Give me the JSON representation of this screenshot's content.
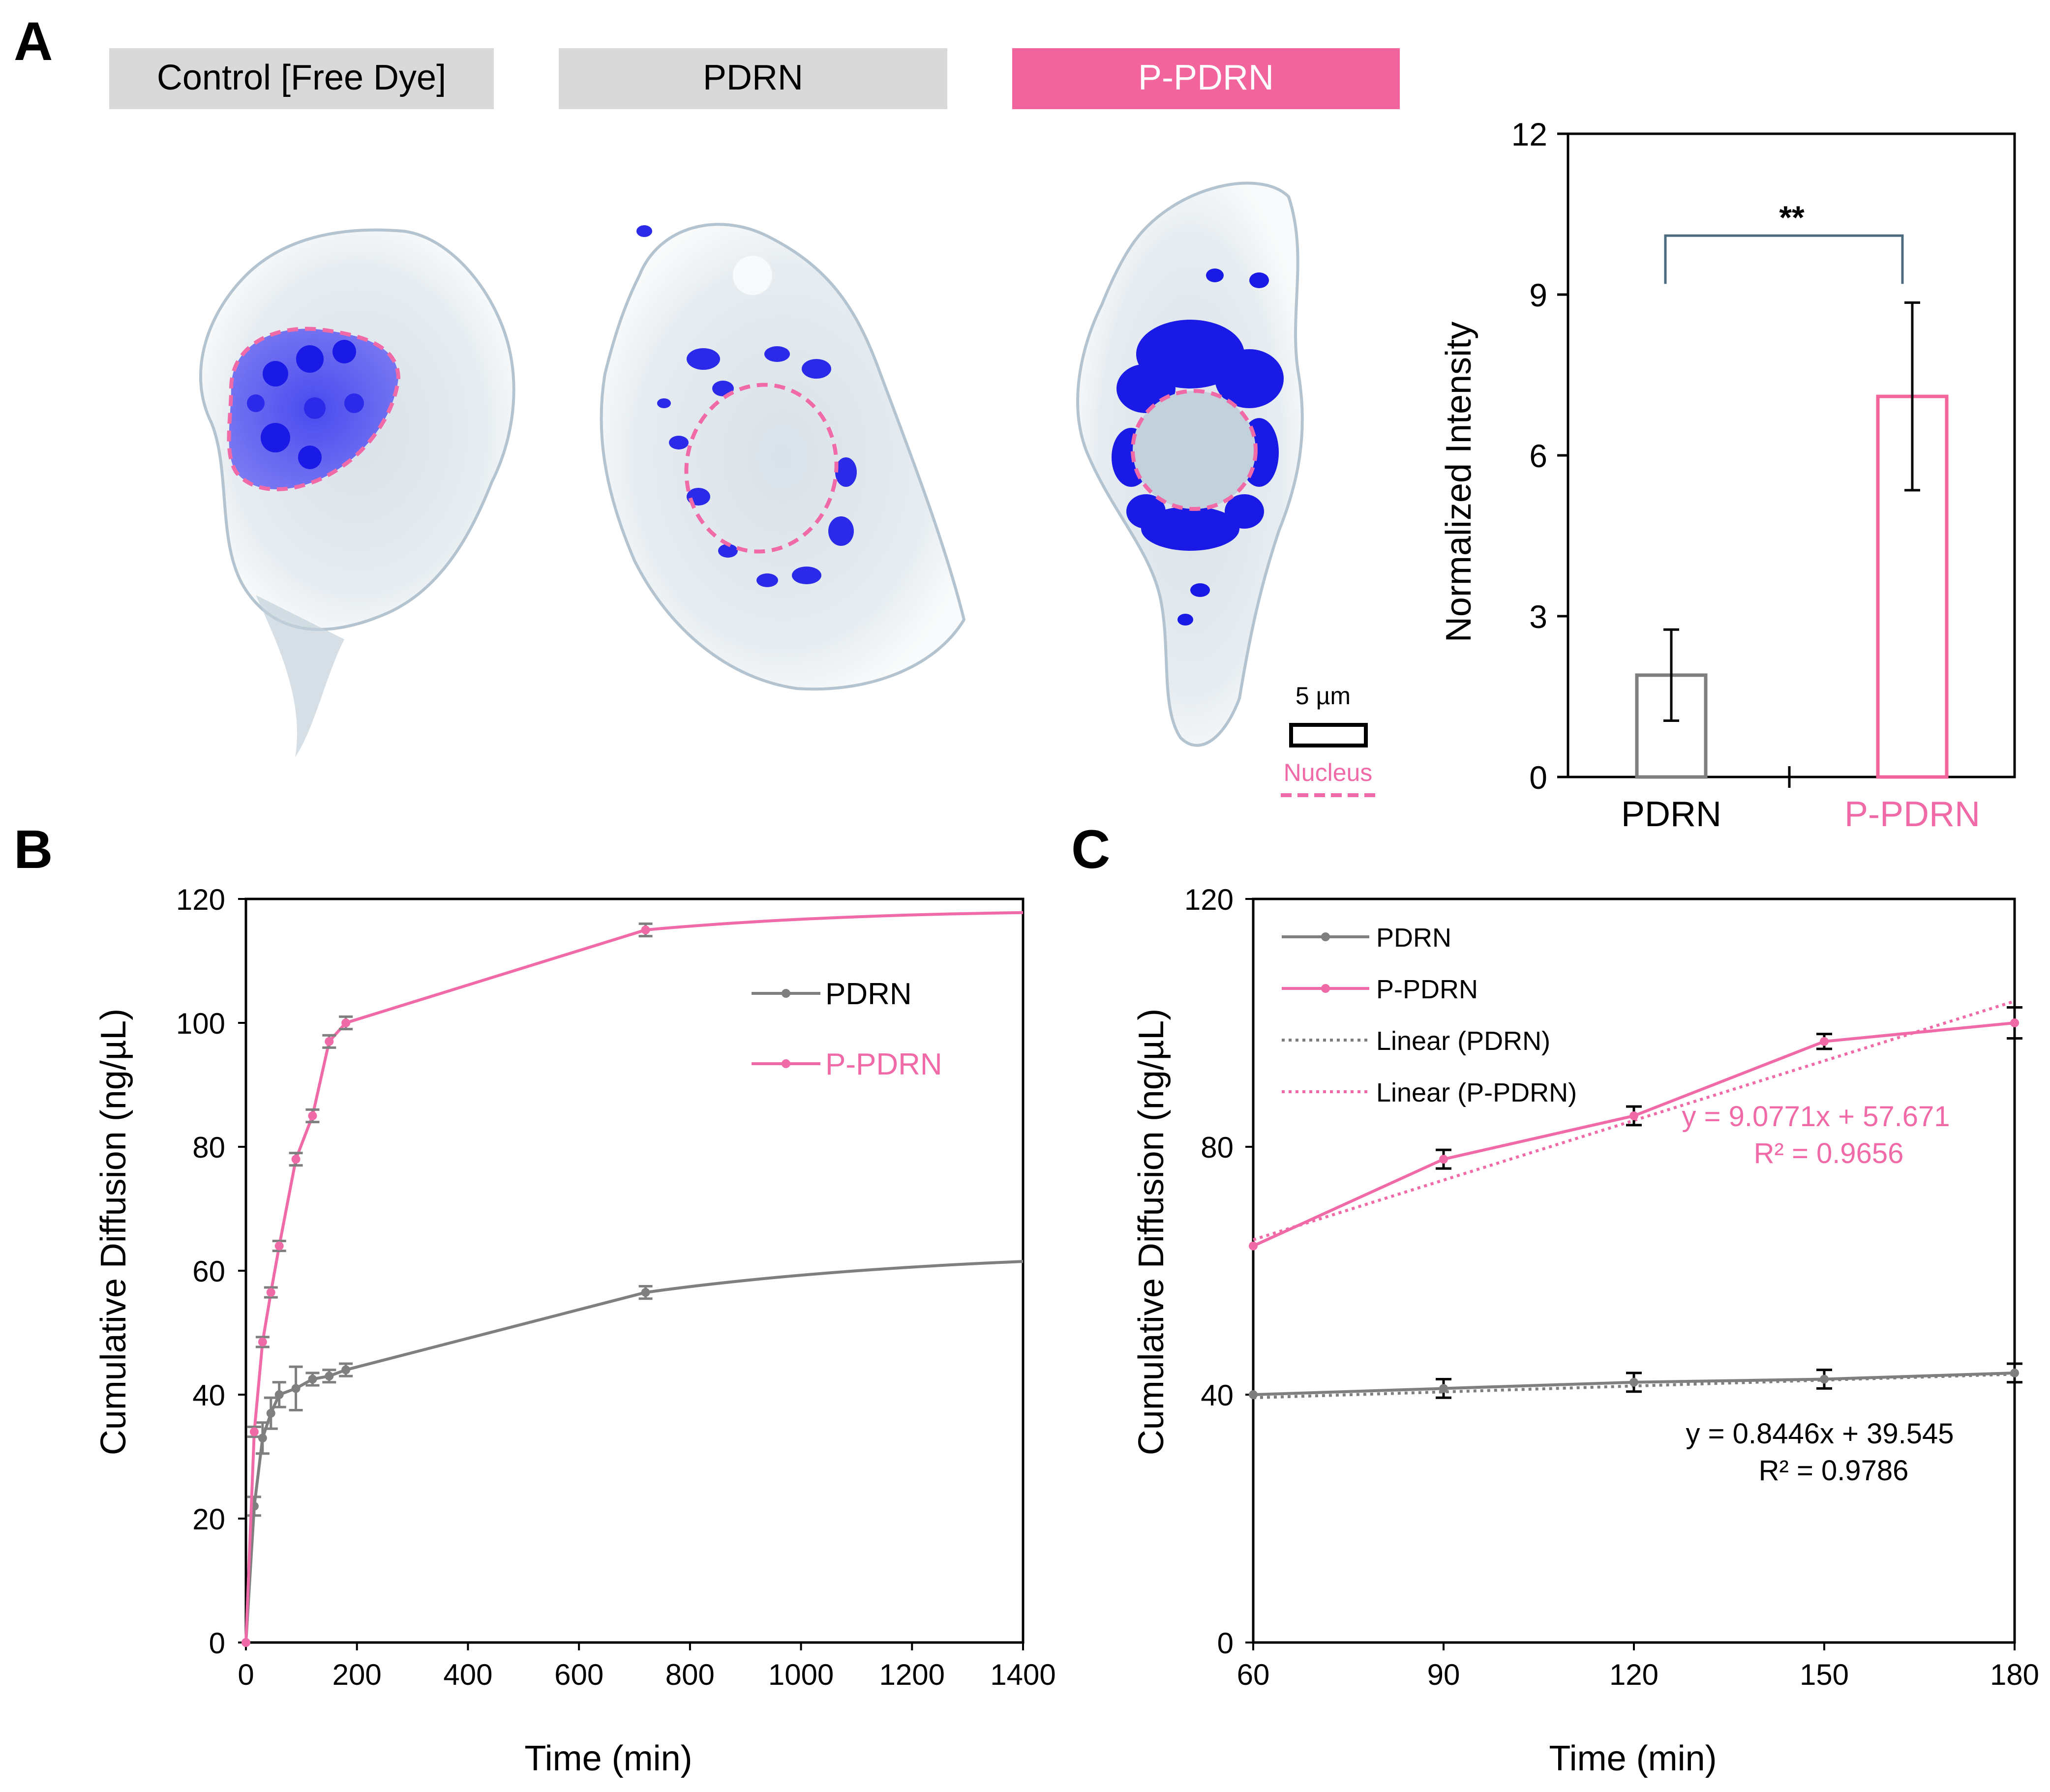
{
  "panel_labels": {
    "a": "A",
    "b": "B",
    "c": "C"
  },
  "colors": {
    "pink": "#f06aa8",
    "pink_bar": "#f2649c",
    "gray": "#7f7f7f",
    "gray_label": "#d9d9d9",
    "dye": "#1a1ae6",
    "cell": "#a9bccb",
    "text": "#000000",
    "bracket": "#4d6b80"
  },
  "panel_a": {
    "headers": [
      "Control [Free Dye]",
      "PDRN",
      "P-PDRN"
    ],
    "scale_bar": "5 µm",
    "nucleus_label": "Nucleus"
  },
  "chart_data": [
    {
      "type": "bar",
      "panel": "A",
      "title": "",
      "ylabel": "Normalized Intensity",
      "xlabel": "",
      "categories": [
        "PDRN",
        "P-PDRN"
      ],
      "values": [
        1.9,
        7.1
      ],
      "errors": [
        0.85,
        1.75
      ],
      "ylim": [
        0,
        12
      ],
      "yticks": [
        "0",
        "3",
        "6",
        "9",
        "12"
      ],
      "significance": "**",
      "grid": false
    },
    {
      "type": "line",
      "panel": "B",
      "title": "",
      "xlabel": "Time (min)",
      "ylabel": "Cumulative Diffusion (ng/µL)",
      "xlim": [
        0,
        1400
      ],
      "ylim": [
        0,
        120
      ],
      "xticks": [
        "0",
        "200",
        "400",
        "600",
        "800",
        "1000",
        "1200",
        "1400"
      ],
      "yticks": [
        "0",
        "20",
        "40",
        "60",
        "80",
        "100",
        "120"
      ],
      "legend_position": "right-center",
      "series": [
        {
          "name": "PDRN",
          "x": [
            0,
            15,
            30,
            45,
            60,
            90,
            120,
            150,
            180,
            720
          ],
          "y": [
            0,
            22,
            33,
            37,
            40,
            41,
            42.5,
            43,
            44,
            56.5
          ],
          "errors": [
            0,
            1.5,
            2.5,
            2.5,
            2.0,
            3.5,
            1.0,
            1.0,
            1.0,
            1.0
          ],
          "tail": [
            [
              1000,
              60
            ],
            [
              1400,
              61.5
            ]
          ]
        },
        {
          "name": "P-PDRN",
          "x": [
            0,
            15,
            30,
            45,
            60,
            90,
            120,
            150,
            180,
            720
          ],
          "y": [
            0,
            34,
            48.5,
            56.5,
            64,
            78,
            85,
            97,
            100,
            115
          ],
          "errors": [
            0,
            0.8,
            0.8,
            0.8,
            0.8,
            1.0,
            1.0,
            1.0,
            1.0,
            1.0
          ],
          "tail": [
            [
              1000,
              117.3
            ],
            [
              1400,
              117.8
            ]
          ]
        }
      ]
    },
    {
      "type": "line",
      "panel": "C",
      "title": "",
      "xlabel": "Time (min)",
      "ylabel": "Cumulative Diffusion (ng/µL)",
      "xlim": [
        60,
        180
      ],
      "ylim": [
        0,
        120
      ],
      "xticks": [
        "60",
        "90",
        "120",
        "150",
        "180"
      ],
      "yticks": [
        "0",
        "40",
        "80",
        "120"
      ],
      "legend_position": "top-left",
      "legend": [
        "PDRN",
        "P-PDRN",
        "Linear (PDRN)",
        "Linear (P-PDRN)"
      ],
      "series": [
        {
          "name": "PDRN",
          "x": [
            60,
            90,
            120,
            150,
            180
          ],
          "y": [
            40,
            41,
            42,
            42.5,
            43.5
          ],
          "errors": [
            0,
            1.5,
            1.5,
            1.5,
            1.5
          ]
        },
        {
          "name": "P-PDRN",
          "x": [
            60,
            90,
            120,
            150,
            180
          ],
          "y": [
            64,
            78,
            85,
            97,
            100
          ],
          "errors": [
            0,
            1.5,
            1.5,
            1.2,
            2.5
          ]
        }
      ],
      "trendlines": [
        {
          "name": "Linear (PDRN)",
          "x": [
            60,
            180
          ],
          "y": [
            39.5,
            43.3
          ]
        },
        {
          "name": "Linear (P-PDRN)",
          "x": [
            60,
            180
          ],
          "y": [
            65.0,
            103.5
          ]
        }
      ],
      "annotations": {
        "pink_eq": "y = 9.0771x + 57.671",
        "pink_r2": "R² = 0.9656",
        "gray_eq": "y = 0.8446x + 39.545",
        "gray_r2": "R² = 0.9786"
      }
    }
  ]
}
